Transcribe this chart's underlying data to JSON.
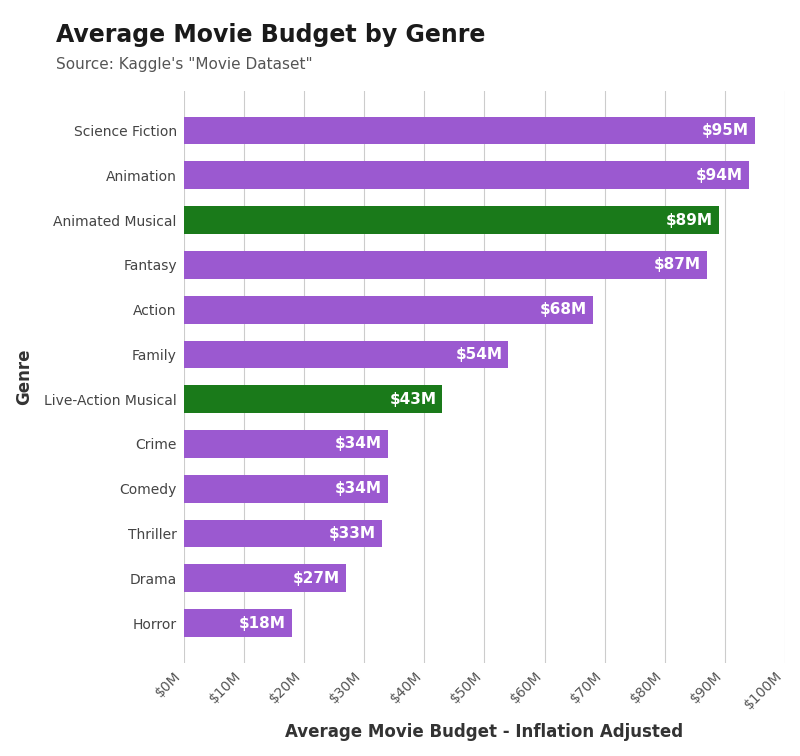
{
  "title": "Average Movie Budget by Genre",
  "subtitle": "Source: Kaggle's \"Movie Dataset\"",
  "xlabel": "Average Movie Budget - Inflation Adjusted",
  "ylabel": "Genre",
  "categories": [
    "Horror",
    "Drama",
    "Thriller",
    "Comedy",
    "Crime",
    "Live-Action Musical",
    "Family",
    "Action",
    "Fantasy",
    "Animated Musical",
    "Animation",
    "Science Fiction"
  ],
  "values": [
    18,
    27,
    33,
    34,
    34,
    43,
    54,
    68,
    87,
    89,
    94,
    95
  ],
  "bar_colors": [
    "#9b59d0",
    "#9b59d0",
    "#9b59d0",
    "#9b59d0",
    "#9b59d0",
    "#1a7a1a",
    "#9b59d0",
    "#9b59d0",
    "#9b59d0",
    "#1a7a1a",
    "#9b59d0",
    "#9b59d0"
  ],
  "bar_labels": [
    "$18M",
    "$27M",
    "$33M",
    "$34M",
    "$34M",
    "$43M",
    "$54M",
    "$68M",
    "$87M",
    "$89M",
    "$94M",
    "$95M"
  ],
  "xlim": [
    0,
    100
  ],
  "xtick_values": [
    0,
    10,
    20,
    30,
    40,
    50,
    60,
    70,
    80,
    90,
    100
  ],
  "xtick_labels": [
    "$0M",
    "$10M",
    "$20M",
    "$30M",
    "$40M",
    "$50M",
    "$60M",
    "$70M",
    "$80M",
    "$90M",
    "$100M"
  ],
  "background_color": "#ffffff",
  "grid_color": "#cccccc",
  "title_fontsize": 17,
  "subtitle_fontsize": 11,
  "xlabel_fontsize": 12,
  "ylabel_fontsize": 12,
  "tick_fontsize": 10,
  "bar_label_fontsize": 11
}
